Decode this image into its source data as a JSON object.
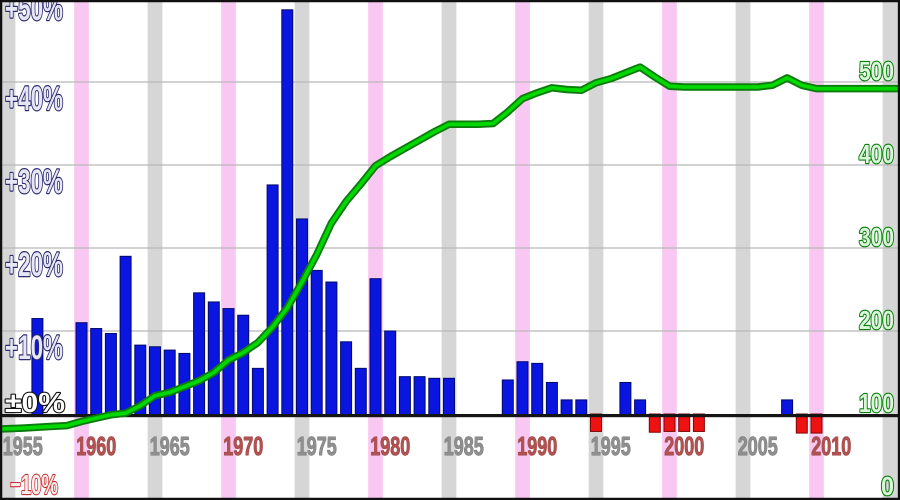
{
  "chart_data": {
    "type": "combo",
    "title": "",
    "grid": "horizontal-only",
    "legend": "none",
    "axes": {
      "left": {
        "unit": "%",
        "min": -10,
        "max": 50,
        "ticks": [
          {
            "v": 50,
            "text": "+50%"
          },
          {
            "v": 40,
            "text": "+40%"
          },
          {
            "v": 30,
            "text": "+30%"
          },
          {
            "v": 20,
            "text": "+20%"
          },
          {
            "v": 10,
            "text": "+10%"
          },
          {
            "v": 0,
            "text": "±0%"
          },
          {
            "v": -10,
            "text": "−10%"
          }
        ]
      },
      "right": {
        "unit": "count",
        "min": 0,
        "max": 599,
        "ticks": [
          {
            "n": 500,
            "text": "500"
          },
          {
            "n": 400,
            "text": "400"
          },
          {
            "n": 300,
            "text": "300"
          },
          {
            "n": 200,
            "text": "200"
          },
          {
            "n": 100,
            "text": "100"
          },
          {
            "n": 0,
            "text": "0"
          }
        ]
      },
      "x": {
        "min": 1953.45,
        "max": 2014.7,
        "year_labels": [
          {
            "year": 1955,
            "text": "1955",
            "tone": "gray"
          },
          {
            "year": 1960,
            "text": "1960",
            "tone": "red"
          },
          {
            "year": 1965,
            "text": "1965",
            "tone": "gray"
          },
          {
            "year": 1970,
            "text": "1970",
            "tone": "red"
          },
          {
            "year": 1975,
            "text": "1975",
            "tone": "gray"
          },
          {
            "year": 1980,
            "text": "1980",
            "tone": "red"
          },
          {
            "year": 1985,
            "text": "1985",
            "tone": "gray"
          },
          {
            "year": 1990,
            "text": "1990",
            "tone": "red"
          },
          {
            "year": 1995,
            "text": "1995",
            "tone": "gray"
          },
          {
            "year": 2000,
            "text": "2000",
            "tone": "red"
          },
          {
            "year": 2005,
            "text": "2005",
            "tone": "gray"
          },
          {
            "year": 2010,
            "text": "2010",
            "tone": "red"
          }
        ]
      }
    },
    "background_bands": {
      "width_years": 1,
      "gray_years": [
        1954,
        1964,
        1974,
        1984,
        1994,
        2004,
        2014
      ],
      "pink_years": [
        1959,
        1969,
        1979,
        1989,
        1999,
        2009
      ]
    },
    "series": [
      {
        "name": "annual-change-percent",
        "type": "bar",
        "axis": "left",
        "points": [
          [
            1956,
            11.5
          ],
          [
            1959,
            11.0
          ],
          [
            1960,
            10.3
          ],
          [
            1961,
            9.7
          ],
          [
            1962,
            19.0
          ],
          [
            1963,
            8.3
          ],
          [
            1964,
            8.1
          ],
          [
            1965,
            7.7
          ],
          [
            1966,
            7.3
          ],
          [
            1967,
            14.6
          ],
          [
            1968,
            13.5
          ],
          [
            1969,
            12.7
          ],
          [
            1970,
            11.9
          ],
          [
            1971,
            5.5
          ],
          [
            1972,
            27.6
          ],
          [
            1973,
            48.7
          ],
          [
            1974,
            23.5
          ],
          [
            1975,
            17.3
          ],
          [
            1976,
            15.9
          ],
          [
            1977,
            8.7
          ],
          [
            1978,
            5.5
          ],
          [
            1979,
            16.3
          ],
          [
            1980,
            10.0
          ],
          [
            1981,
            4.5
          ],
          [
            1982,
            4.5
          ],
          [
            1983,
            4.3
          ],
          [
            1984,
            4.3
          ],
          [
            1988,
            4.1
          ],
          [
            1989,
            6.3
          ],
          [
            1990,
            6.1
          ],
          [
            1991,
            3.8
          ],
          [
            1992,
            1.7
          ],
          [
            1993,
            1.7
          ],
          [
            1994,
            -2.1
          ],
          [
            1996,
            3.8
          ],
          [
            1997,
            1.7
          ],
          [
            1998,
            -2.2
          ],
          [
            1999,
            -2.1
          ],
          [
            2000,
            -2.1
          ],
          [
            2001,
            -2.1
          ],
          [
            2007,
            1.7
          ],
          [
            2008,
            -2.3
          ],
          [
            2009,
            -2.3
          ]
        ]
      },
      {
        "name": "cumulative-total",
        "type": "line",
        "axis": "right",
        "points": [
          [
            1953.67,
            82
          ],
          [
            1955,
            83
          ],
          [
            1956,
            84
          ],
          [
            1957,
            85
          ],
          [
            1958,
            86
          ],
          [
            1959,
            91
          ],
          [
            1960,
            95
          ],
          [
            1961,
            99
          ],
          [
            1962,
            101
          ],
          [
            1963,
            110
          ],
          [
            1964,
            122
          ],
          [
            1965,
            126
          ],
          [
            1966,
            133
          ],
          [
            1967,
            140
          ],
          [
            1968,
            150
          ],
          [
            1969,
            165
          ],
          [
            1970,
            174
          ],
          [
            1971,
            186
          ],
          [
            1972,
            205
          ],
          [
            1973,
            228
          ],
          [
            1974,
            259
          ],
          [
            1975,
            292
          ],
          [
            1976,
            330
          ],
          [
            1977,
            356
          ],
          [
            1978,
            377
          ],
          [
            1979,
            399
          ],
          [
            1980,
            410
          ],
          [
            1981,
            420
          ],
          [
            1982,
            430
          ],
          [
            1983,
            440
          ],
          [
            1984,
            449
          ],
          [
            1985,
            449
          ],
          [
            1986,
            449
          ],
          [
            1987,
            450
          ],
          [
            1988,
            464
          ],
          [
            1989,
            480
          ],
          [
            1990,
            487
          ],
          [
            1991,
            493
          ],
          [
            1992,
            491
          ],
          [
            1993,
            490
          ],
          [
            1994,
            499
          ],
          [
            1995,
            504
          ],
          [
            1996,
            511
          ],
          [
            1997,
            518
          ],
          [
            1998,
            506
          ],
          [
            1999,
            495
          ],
          [
            2000,
            494
          ],
          [
            2001,
            494
          ],
          [
            2002,
            494
          ],
          [
            2003,
            494
          ],
          [
            2004,
            494
          ],
          [
            2005,
            494
          ],
          [
            2006,
            496
          ],
          [
            2007,
            505
          ],
          [
            2008,
            496
          ],
          [
            2009,
            492
          ],
          [
            2010,
            492
          ],
          [
            2011,
            492
          ],
          [
            2012,
            492
          ],
          [
            2013,
            492
          ],
          [
            2014.45,
            492
          ]
        ]
      }
    ]
  },
  "colors": {
    "background": "#ffffff",
    "border": "#101010",
    "gridline": "#b8b8b8",
    "zero_axis": "#151515",
    "band_gray": "#d6d6d6",
    "band_pink": "#f8c8f2",
    "bar_positive_fill": "#0a16e0",
    "bar_positive_stroke": "#000a6a",
    "bar_negative_fill": "#ee1212",
    "bar_negative_stroke": "#7d0606",
    "line_core": "#00d800",
    "line_edge": "#0d7a0d"
  }
}
